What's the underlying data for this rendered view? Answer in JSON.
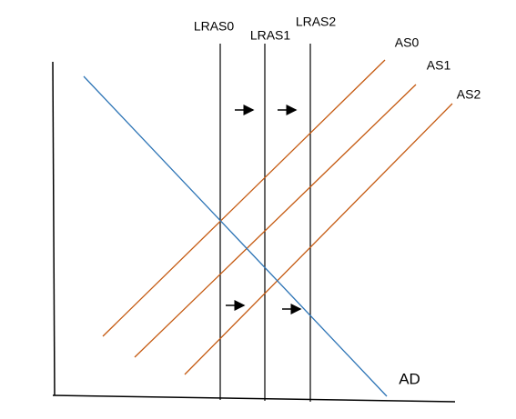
{
  "lras_labels": [
    "LRAS0",
    "LRAS1",
    "LRAS2"
  ],
  "as_labels": [
    "AS0",
    "AS1",
    "AS2"
  ],
  "ad_label": "AD"
}
